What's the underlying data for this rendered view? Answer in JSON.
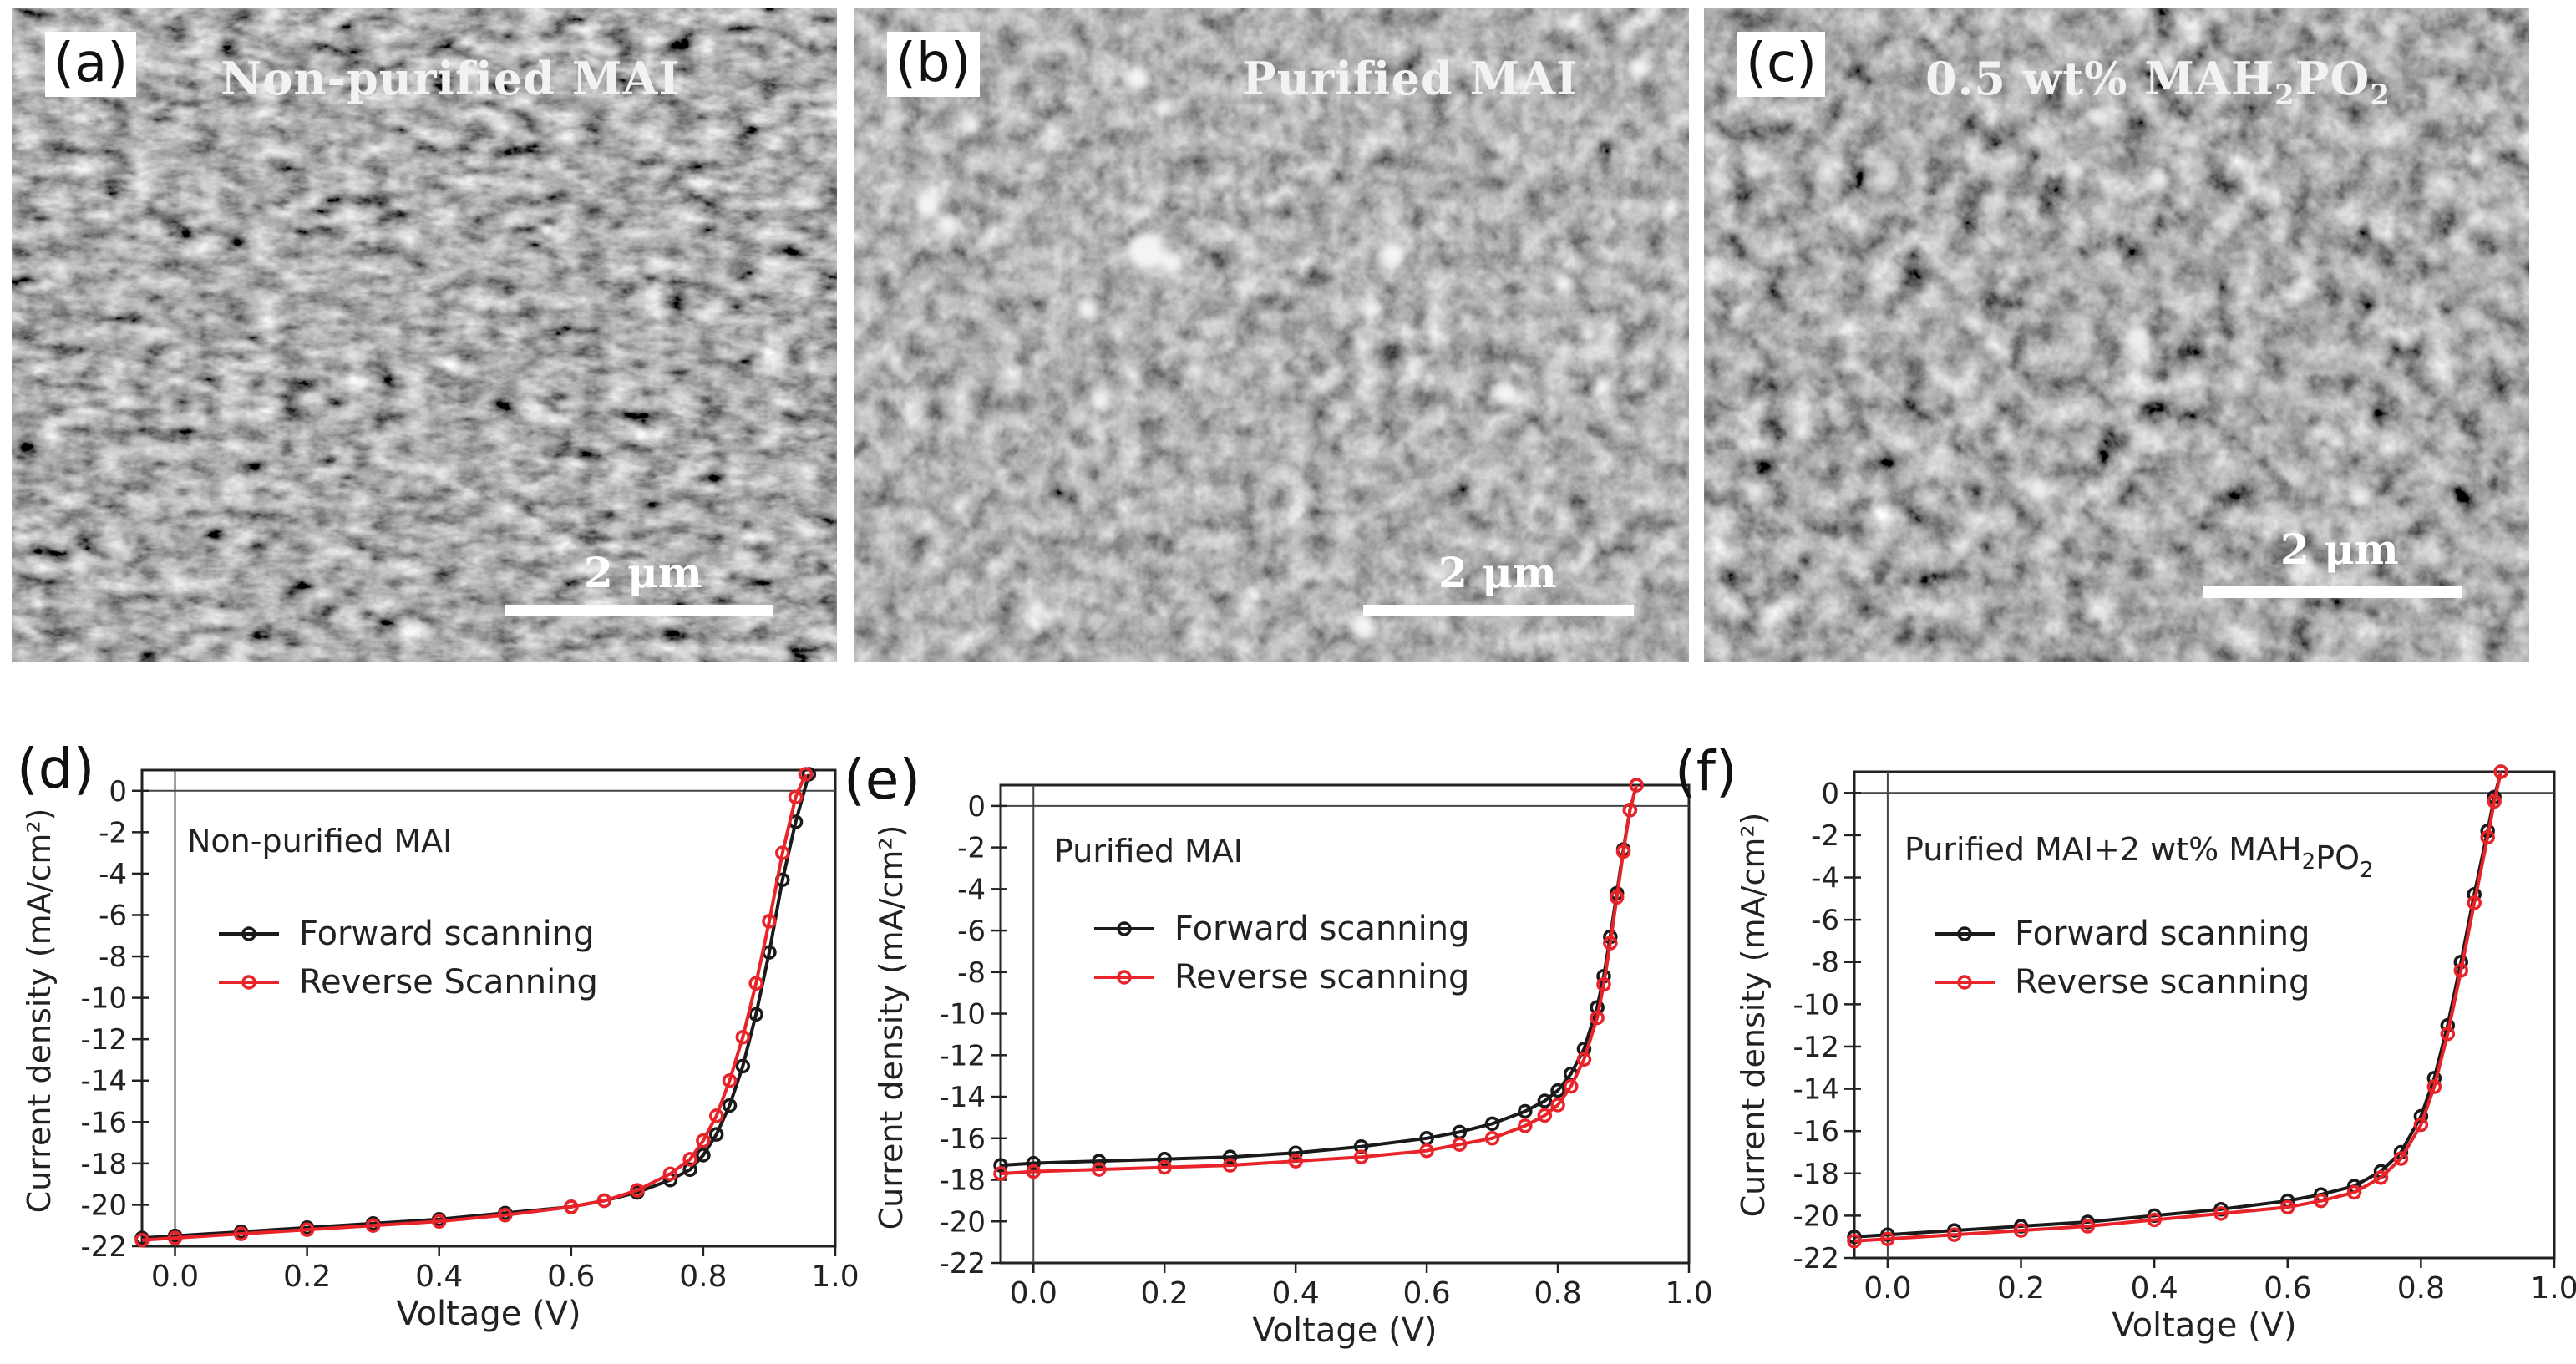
{
  "figure": {
    "sem_panels": [
      {
        "label": "(a)",
        "title": "Non-purified MAI",
        "scale": "2 μm"
      },
      {
        "label": "(b)",
        "title": "Purified MAI",
        "scale": "2 μm"
      },
      {
        "label": "(c)",
        "title_pre": "0.5 wt% MAH",
        "title_sub1": "2",
        "title_mid": "PO",
        "title_sub2": "2",
        "scale": "2 μm"
      }
    ]
  },
  "chart_data": [
    {
      "panel": "(d)",
      "type": "line",
      "annotation": "Non-purified MAI",
      "xlabel": "Voltage (V)",
      "ylabel": "Current density (mA/cm²)",
      "xlim": [
        -0.05,
        1.0
      ],
      "ylim": [
        -22,
        1
      ],
      "xticks": [
        "0.0",
        "0.2",
        "0.4",
        "0.6",
        "0.8",
        "1.0"
      ],
      "yticks": [
        "0",
        "-2",
        "-4",
        "-6",
        "-8",
        "-10",
        "-12",
        "-14",
        "-16",
        "-18",
        "-20",
        "-22"
      ],
      "series": [
        {
          "name": "Forward scanning",
          "color": "#1a1a1a",
          "x": [
            -0.05,
            0.0,
            0.1,
            0.2,
            0.3,
            0.4,
            0.5,
            0.6,
            0.65,
            0.7,
            0.75,
            0.78,
            0.8,
            0.82,
            0.84,
            0.86,
            0.88,
            0.9,
            0.92,
            0.94,
            0.96
          ],
          "y": [
            -21.6,
            -21.5,
            -21.3,
            -21.1,
            -20.9,
            -20.7,
            -20.4,
            -20.1,
            -19.8,
            -19.4,
            -18.8,
            -18.3,
            -17.6,
            -16.6,
            -15.2,
            -13.3,
            -10.8,
            -7.8,
            -4.3,
            -1.5,
            0.8
          ]
        },
        {
          "name": "Reverse Scanning",
          "color": "#e8242a",
          "x": [
            -0.05,
            0.0,
            0.1,
            0.2,
            0.3,
            0.4,
            0.5,
            0.6,
            0.65,
            0.7,
            0.75,
            0.78,
            0.8,
            0.82,
            0.84,
            0.86,
            0.88,
            0.9,
            0.92,
            0.94,
            0.955
          ],
          "y": [
            -21.7,
            -21.6,
            -21.4,
            -21.2,
            -21.0,
            -20.8,
            -20.5,
            -20.1,
            -19.8,
            -19.3,
            -18.5,
            -17.8,
            -16.9,
            -15.7,
            -14.0,
            -11.9,
            -9.3,
            -6.3,
            -3.0,
            -0.3,
            0.8
          ]
        }
      ]
    },
    {
      "panel": "(e)",
      "type": "line",
      "annotation": "Purified MAI",
      "xlabel": "Voltage (V)",
      "ylabel": "Current density (mA/cm²)",
      "xlim": [
        -0.05,
        1.0
      ],
      "ylim": [
        -22,
        1
      ],
      "xticks": [
        "0.0",
        "0.2",
        "0.4",
        "0.6",
        "0.8",
        "1.0"
      ],
      "yticks": [
        "0",
        "-2",
        "-4",
        "-6",
        "-8",
        "-10",
        "-12",
        "-14",
        "-16",
        "-18",
        "-20",
        "-22"
      ],
      "series": [
        {
          "name": "Forward scanning",
          "color": "#1a1a1a",
          "x": [
            -0.05,
            0.0,
            0.1,
            0.2,
            0.3,
            0.4,
            0.5,
            0.6,
            0.65,
            0.7,
            0.75,
            0.78,
            0.8,
            0.82,
            0.84,
            0.86,
            0.87,
            0.88,
            0.89,
            0.9,
            0.91,
            0.92
          ],
          "y": [
            -17.3,
            -17.2,
            -17.1,
            -17.0,
            -16.9,
            -16.7,
            -16.4,
            -16.0,
            -15.7,
            -15.3,
            -14.7,
            -14.2,
            -13.7,
            -12.9,
            -11.7,
            -9.7,
            -8.2,
            -6.3,
            -4.2,
            -2.1,
            -0.2,
            1.0
          ]
        },
        {
          "name": "Reverse scanning",
          "color": "#e8242a",
          "x": [
            -0.05,
            0.0,
            0.1,
            0.2,
            0.3,
            0.4,
            0.5,
            0.6,
            0.65,
            0.7,
            0.75,
            0.78,
            0.8,
            0.82,
            0.84,
            0.86,
            0.87,
            0.88,
            0.89,
            0.9,
            0.91,
            0.92
          ],
          "y": [
            -17.7,
            -17.6,
            -17.5,
            -17.4,
            -17.3,
            -17.1,
            -16.9,
            -16.6,
            -16.3,
            -16.0,
            -15.4,
            -14.9,
            -14.4,
            -13.5,
            -12.2,
            -10.2,
            -8.6,
            -6.6,
            -4.4,
            -2.2,
            -0.2,
            1.0
          ]
        }
      ]
    },
    {
      "panel": "(f)",
      "type": "line",
      "annotation_pre": "Purified MAI+2 wt% MAH",
      "annotation_sub1": "2",
      "annotation_mid": "PO",
      "annotation_sub2": "2",
      "xlabel": "Voltage (V)",
      "ylabel": "Current density (mA/cm²)",
      "xlim": [
        -0.05,
        1.0
      ],
      "ylim": [
        -22,
        1
      ],
      "xticks": [
        "0.0",
        "0.2",
        "0.4",
        "0.6",
        "0.8",
        "1.0"
      ],
      "yticks": [
        "0",
        "-2",
        "-4",
        "-6",
        "-8",
        "-10",
        "-12",
        "-14",
        "-16",
        "-18",
        "-20",
        "-22"
      ],
      "series": [
        {
          "name": "Forward scanning",
          "color": "#1a1a1a",
          "x": [
            -0.05,
            0.0,
            0.1,
            0.2,
            0.3,
            0.4,
            0.5,
            0.6,
            0.65,
            0.7,
            0.74,
            0.77,
            0.8,
            0.82,
            0.84,
            0.86,
            0.88,
            0.9,
            0.91,
            0.92
          ],
          "y": [
            -21.0,
            -20.9,
            -20.7,
            -20.5,
            -20.3,
            -20.0,
            -19.7,
            -19.3,
            -19.0,
            -18.6,
            -17.9,
            -17.0,
            -15.3,
            -13.5,
            -11.0,
            -8.0,
            -4.8,
            -1.8,
            -0.2,
            1.0
          ]
        },
        {
          "name": "Reverse scanning",
          "color": "#e8242a",
          "x": [
            -0.05,
            0.0,
            0.1,
            0.2,
            0.3,
            0.4,
            0.5,
            0.6,
            0.65,
            0.7,
            0.74,
            0.77,
            0.8,
            0.82,
            0.84,
            0.86,
            0.88,
            0.9,
            0.91,
            0.92
          ],
          "y": [
            -21.2,
            -21.1,
            -20.9,
            -20.7,
            -20.5,
            -20.2,
            -19.9,
            -19.6,
            -19.3,
            -18.9,
            -18.2,
            -17.3,
            -15.7,
            -13.9,
            -11.4,
            -8.4,
            -5.2,
            -2.1,
            -0.4,
            1.0
          ]
        }
      ]
    }
  ]
}
